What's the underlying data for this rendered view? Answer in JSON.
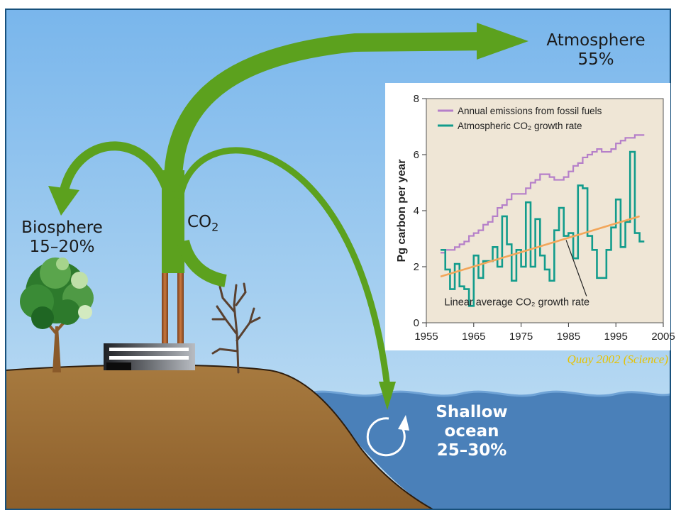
{
  "labels": {
    "atmosphere": {
      "name": "Atmosphere",
      "share": "55%"
    },
    "biosphere": {
      "name": "Biosphere",
      "share": "15–20%"
    },
    "source": {
      "base": "CO",
      "sub": "2"
    },
    "ocean": {
      "name": "Shallow ocean",
      "share": "25–30%"
    }
  },
  "citation": "Quay 2002 (Science)",
  "colors": {
    "sky": "#8ec3ee",
    "ground": "#9c6b34",
    "ocean": "#4a80b9",
    "arrow": "#5ca11e",
    "chart_bg": "#efe6d6",
    "emissions_line": "#b57fc9",
    "growth_line": "#129c8c",
    "trend_line": "#f2a65a"
  },
  "chart_data": {
    "type": "line",
    "ylabel": "Pg carbon per year",
    "xlim": [
      1955,
      2005
    ],
    "ylim": [
      0,
      8
    ],
    "xticks": [
      "1955",
      "1965",
      "1975",
      "1985",
      "1995",
      "2005"
    ],
    "yticks": [
      "0",
      "2",
      "4",
      "6",
      "8"
    ],
    "legend_position": "top-left",
    "series": [
      {
        "name": "Annual emissions from fossil fuels",
        "step": true,
        "x": [
          1958,
          1959,
          1960,
          1961,
          1962,
          1963,
          1964,
          1965,
          1966,
          1967,
          1968,
          1969,
          1970,
          1971,
          1972,
          1973,
          1974,
          1975,
          1976,
          1977,
          1978,
          1979,
          1980,
          1981,
          1982,
          1983,
          1984,
          1985,
          1986,
          1987,
          1988,
          1989,
          1990,
          1991,
          1992,
          1993,
          1994,
          1995,
          1996,
          1997,
          1998,
          1999,
          2000
        ],
        "values": [
          2.5,
          2.6,
          2.6,
          2.7,
          2.8,
          2.9,
          3.1,
          3.2,
          3.3,
          3.5,
          3.6,
          3.8,
          4.1,
          4.2,
          4.4,
          4.6,
          4.6,
          4.6,
          4.8,
          5.0,
          5.1,
          5.3,
          5.3,
          5.2,
          5.1,
          5.1,
          5.2,
          5.4,
          5.6,
          5.7,
          5.9,
          6.0,
          6.1,
          6.2,
          6.1,
          6.1,
          6.2,
          6.4,
          6.5,
          6.6,
          6.6,
          6.7,
          6.7
        ]
      },
      {
        "name": "Atmospheric CO₂ growth rate",
        "step": true,
        "x": [
          1958,
          1959,
          1960,
          1961,
          1962,
          1963,
          1964,
          1965,
          1966,
          1967,
          1968,
          1969,
          1970,
          1971,
          1972,
          1973,
          1974,
          1975,
          1976,
          1977,
          1978,
          1979,
          1980,
          1981,
          1982,
          1983,
          1984,
          1985,
          1986,
          1987,
          1988,
          1989,
          1990,
          1991,
          1992,
          1993,
          1994,
          1995,
          1996,
          1997,
          1998,
          1999,
          2000
        ],
        "values": [
          2.6,
          1.9,
          1.2,
          2.1,
          1.3,
          1.2,
          0.6,
          2.4,
          1.6,
          2.2,
          2.2,
          2.7,
          2.0,
          3.8,
          2.8,
          1.5,
          2.6,
          2.0,
          4.3,
          2.0,
          3.7,
          2.4,
          1.9,
          1.5,
          3.3,
          4.1,
          3.1,
          3.2,
          2.3,
          4.9,
          4.8,
          3.1,
          2.6,
          1.6,
          1.6,
          2.6,
          3.4,
          4.4,
          2.7,
          3.6,
          6.1,
          3.2,
          2.9
        ]
      },
      {
        "name": "Linear average CO₂ growth rate",
        "x": [
          1958,
          2000
        ],
        "values": [
          1.65,
          3.8
        ]
      }
    ],
    "annotations": [
      "Linear average CO₂ growth rate"
    ]
  }
}
